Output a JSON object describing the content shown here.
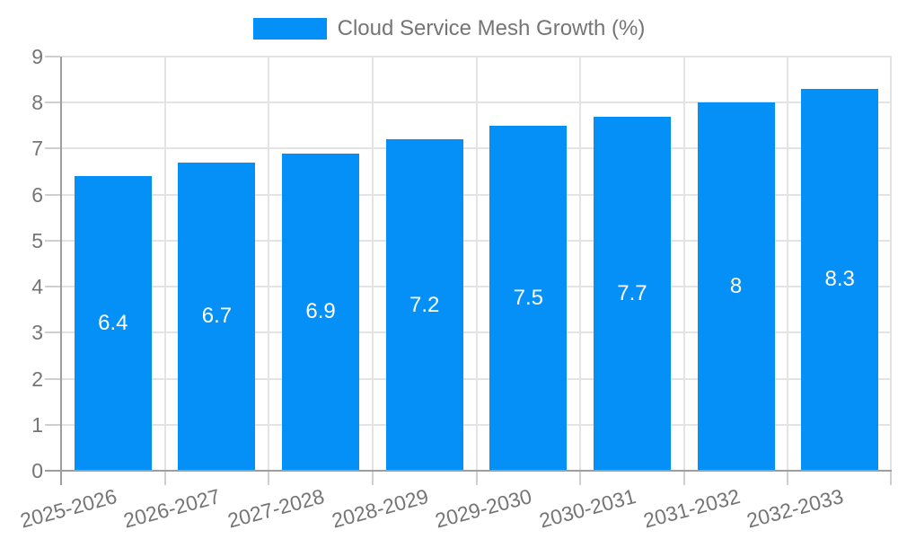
{
  "chart_data": {
    "type": "bar",
    "title": "",
    "legend": {
      "label": "Cloud Service Mesh Growth (%)",
      "position": "top"
    },
    "categories": [
      "2025-2026",
      "2026-2027",
      "2027-2028",
      "2028-2029",
      "2029-2030",
      "2030-2031",
      "2031-2032",
      "2032-2033"
    ],
    "values": [
      6.4,
      6.7,
      6.9,
      7.2,
      7.5,
      7.7,
      8,
      8.3
    ],
    "bar_labels": [
      "6.4",
      "6.7",
      "6.9",
      "7.2",
      "7.5",
      "7.7",
      "8",
      "8.3"
    ],
    "xlabel": "",
    "ylabel": "",
    "ylim": [
      0,
      9
    ],
    "y_tick_step": 1,
    "y_tick_labels": [
      "0",
      "1",
      "2",
      "3",
      "4",
      "5",
      "6",
      "7",
      "8",
      "9"
    ],
    "grid": true,
    "colors": {
      "bar": "#0590f8",
      "axis_line": "#9e9e9e",
      "gridline": "#e3e3e3",
      "tick": "#cfcfcf",
      "axis_label_text": "#757575",
      "bar_label_text": "#ffffff",
      "legend_text": "#757575",
      "background": "#ffffff"
    }
  }
}
